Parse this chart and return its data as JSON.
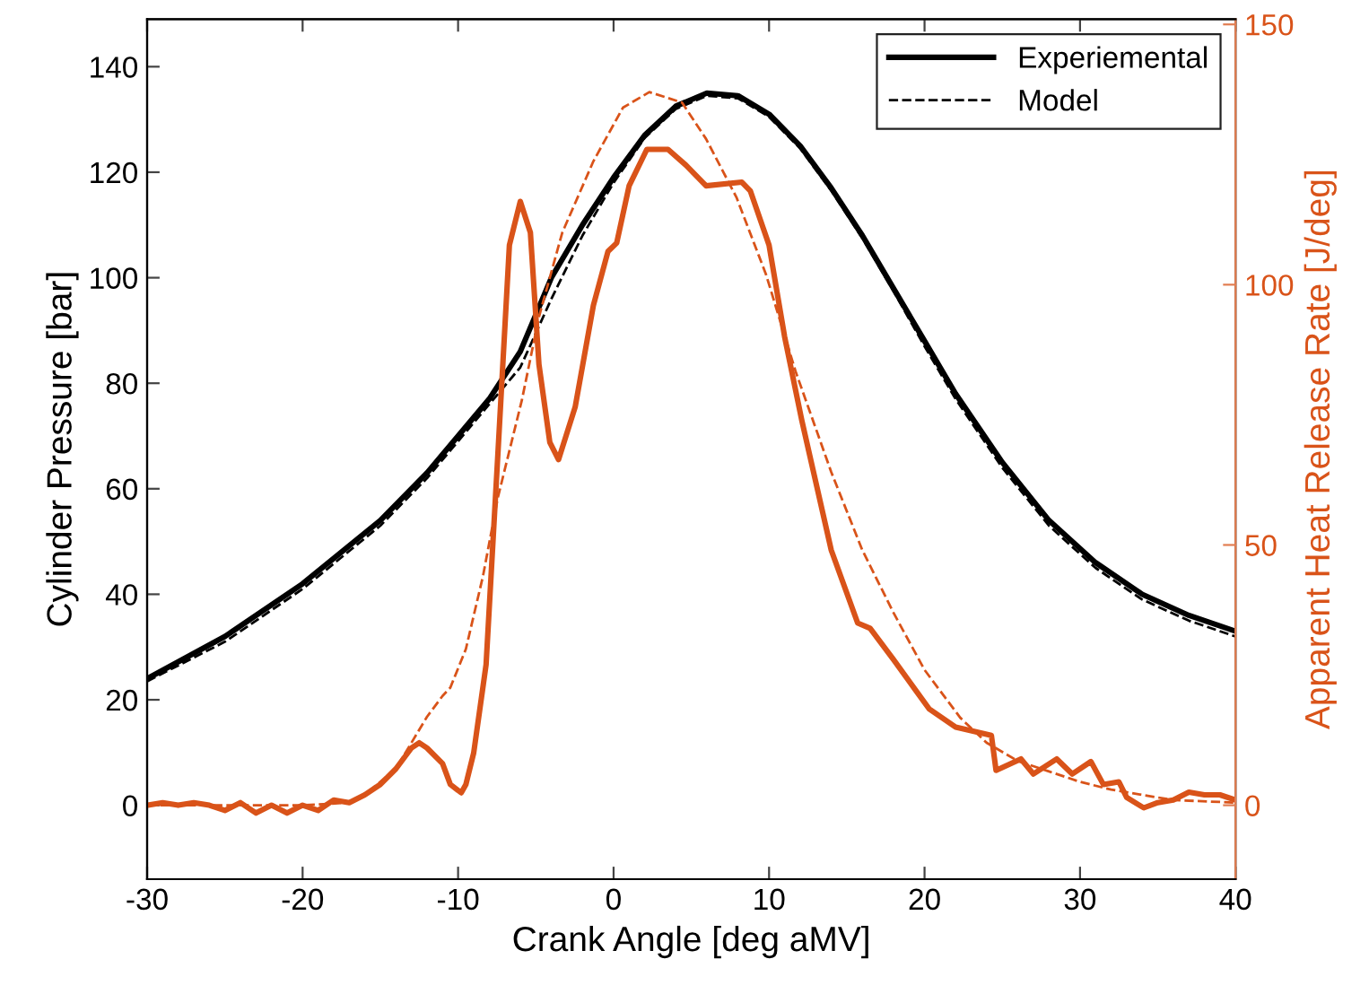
{
  "chart_data": {
    "type": "line",
    "xlabel": "Crank Angle [deg aMV]",
    "ylabel": "Cylinder Pressure [bar]",
    "y2label": "Apparent Heat Release Rate [J/deg]",
    "xlim": [
      -30,
      40
    ],
    "xticks": [
      -30,
      -20,
      -10,
      0,
      10,
      20,
      30,
      40
    ],
    "ylim": [
      -14,
      149
    ],
    "yticks": [
      0,
      20,
      40,
      60,
      80,
      100,
      120,
      140
    ],
    "y2lim": [
      -14.2,
      151
    ],
    "y2ticks": [
      0,
      50,
      100,
      150
    ],
    "legend": "top right",
    "grid": false,
    "marker": "none",
    "series": [
      {
        "name": "Experiemental",
        "color": "#000000",
        "line_style": "solid",
        "x": [
          -30,
          -25,
          -20,
          -15,
          -12,
          -10,
          -8,
          -6,
          -4,
          -2,
          0,
          2,
          4,
          6,
          8,
          10,
          12,
          14,
          16,
          18,
          20,
          22,
          25,
          28,
          31,
          34,
          37,
          40
        ],
        "values": [
          24,
          32,
          42,
          54,
          63,
          70,
          77,
          86,
          100,
          110,
          119,
          127,
          132.5,
          135,
          134.5,
          131,
          125,
          117,
          108,
          98,
          88,
          78,
          65,
          54,
          46,
          40,
          36,
          33
        ]
      },
      {
        "name": "Model",
        "color": "#000000",
        "line_style": "dashed",
        "x": [
          -30,
          -25,
          -20,
          -15,
          -12,
          -10,
          -8,
          -6,
          -4,
          -2,
          0,
          2,
          4,
          6,
          8,
          10,
          12,
          14,
          16,
          18,
          20,
          22,
          25,
          28,
          31,
          34,
          37,
          40
        ],
        "values": [
          23.5,
          31,
          41,
          53,
          62,
          69,
          76,
          83,
          96,
          108,
          118,
          126.5,
          132,
          134.5,
          134,
          130.5,
          124.5,
          116.5,
          107.5,
          97.5,
          87,
          77,
          64,
          53,
          45,
          39,
          35,
          32
        ]
      },
      {
        "axis": "y2",
        "color": "#d95319",
        "line_style": "solid",
        "x": [
          -30,
          -29,
          -28,
          -27,
          -26,
          -25,
          -24,
          -23,
          -22,
          -21,
          -20,
          -19,
          -18,
          -17,
          -16,
          -15,
          -14,
          -13,
          -12.5,
          -12,
          -11,
          -10.5,
          -9.8,
          -9.5,
          -9,
          -8.2,
          -7.45,
          -6.7,
          -6,
          -5.35,
          -4.8,
          -4.1,
          -3.54,
          -2.47,
          -1.3,
          -0.36,
          0.2,
          1,
          2.14,
          3.5,
          4.64,
          5.95,
          8.25,
          8.8,
          10,
          11,
          12.1,
          14,
          15.7,
          16.5,
          18,
          20.3,
          22,
          24.3,
          24.6,
          26.2,
          27,
          28.5,
          29.5,
          30.7,
          31.5,
          32.5,
          33,
          34.1,
          35,
          36,
          37,
          38,
          39,
          40
        ],
        "values": [
          0,
          0.5,
          0,
          0.5,
          0,
          -1,
          0.5,
          -1.5,
          0,
          -1.5,
          0,
          -1,
          1,
          0.5,
          2,
          4,
          7,
          11,
          12,
          11,
          8,
          4,
          2.4,
          4,
          10,
          27,
          67,
          107.6,
          116,
          110,
          84.7,
          69.7,
          66.4,
          76.5,
          96,
          106.4,
          108,
          119,
          126,
          126,
          123,
          119,
          119.7,
          118,
          107.6,
          90,
          74,
          49,
          35,
          34,
          28,
          18.5,
          15,
          13.4,
          6.7,
          8.9,
          6,
          8.9,
          6,
          8.4,
          4,
          4.5,
          1.5,
          -0.5,
          0.5,
          1,
          2.5,
          2,
          2,
          1
        ]
      },
      {
        "axis": "y2",
        "color": "#d95319",
        "line_style": "dashed",
        "x": [
          -30,
          -25,
          -20,
          -17,
          -16,
          -14,
          -13,
          -12,
          -11,
          -10.5,
          -9.5,
          -8.4,
          -7.45,
          -5.9,
          -4.8,
          -3.3,
          -1.3,
          0.6,
          2.3,
          4.4,
          5.95,
          7.9,
          9.8,
          11.7,
          14,
          16,
          18,
          20,
          22.3,
          24,
          26,
          28,
          30,
          32,
          34,
          36,
          40
        ],
        "values": [
          0,
          0,
          0,
          0.5,
          2,
          7,
          12,
          17,
          21,
          22.6,
          30,
          44,
          59,
          77.8,
          93.8,
          110,
          123.7,
          134,
          137,
          135,
          128,
          116.8,
          102,
          83.4,
          64,
          49,
          37,
          26,
          16.8,
          12,
          8.5,
          6.5,
          4.5,
          3,
          2,
          1,
          0.5
        ]
      }
    ]
  }
}
